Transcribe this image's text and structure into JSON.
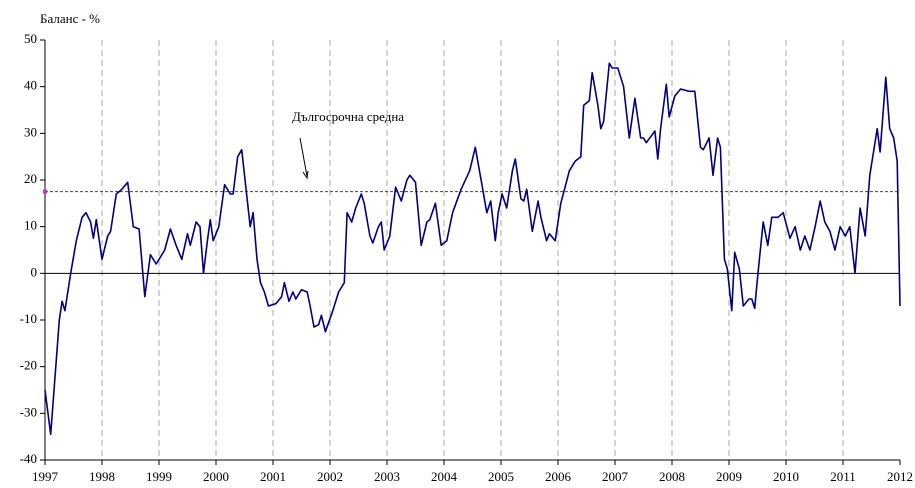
{
  "chart_data": {
    "type": "line",
    "y_label": "Баланс - %",
    "annotation": "Дългосрочна средна",
    "average": 17.5,
    "average_color": "#444444",
    "marker_color": "#cc33cc",
    "xlim": [
      1997,
      2012
    ],
    "xticks": [
      1997,
      1998,
      1999,
      2000,
      2001,
      2002,
      2003,
      2004,
      2005,
      2006,
      2007,
      2008,
      2009,
      2010,
      2011,
      2012
    ],
    "ylim": [
      -40,
      50
    ],
    "yticks": [
      -40,
      -30,
      -20,
      -10,
      0,
      10,
      20,
      30,
      40,
      50
    ],
    "grid": true,
    "x": [
      1997.0,
      1997.1,
      1997.25,
      1997.3,
      1997.35,
      1997.45,
      1997.55,
      1997.65,
      1997.72,
      1997.8,
      1997.85,
      1997.9,
      1998.0,
      1998.1,
      1998.15,
      1998.25,
      1998.35,
      1998.45,
      1998.55,
      1998.65,
      1998.75,
      1998.85,
      1998.95,
      1999.1,
      1999.2,
      1999.3,
      1999.4,
      1999.5,
      1999.55,
      1999.65,
      1999.72,
      1999.78,
      1999.85,
      1999.9,
      1999.95,
      2000.05,
      2000.15,
      2000.25,
      2000.3,
      2000.38,
      2000.45,
      2000.6,
      2000.65,
      2000.72,
      2000.78,
      2000.85,
      2000.92,
      2001.05,
      2001.15,
      2001.2,
      2001.28,
      2001.35,
      2001.4,
      2001.5,
      2001.6,
      2001.65,
      2001.72,
      2001.8,
      2001.85,
      2001.92,
      2002.05,
      2002.15,
      2002.25,
      2002.3,
      2002.38,
      2002.45,
      2002.55,
      2002.6,
      2002.7,
      2002.75,
      2002.85,
      2002.9,
      2002.95,
      2003.05,
      2003.15,
      2003.25,
      2003.35,
      2003.4,
      2003.5,
      2003.6,
      2003.7,
      2003.75,
      2003.85,
      2003.95,
      2004.05,
      2004.15,
      2004.3,
      2004.45,
      2004.55,
      2004.65,
      2004.75,
      2004.82,
      2004.9,
      2004.95,
      2005.02,
      2005.1,
      2005.2,
      2005.25,
      2005.35,
      2005.4,
      2005.45,
      2005.55,
      2005.65,
      2005.7,
      2005.8,
      2005.85,
      2005.95,
      2006.05,
      2006.2,
      2006.3,
      2006.4,
      2006.45,
      2006.55,
      2006.6,
      2006.7,
      2006.75,
      2006.8,
      2006.9,
      2006.95,
      2007.05,
      2007.15,
      2007.25,
      2007.35,
      2007.45,
      2007.5,
      2007.55,
      2007.7,
      2007.75,
      2007.8,
      2007.9,
      2007.95,
      2008.05,
      2008.15,
      2008.3,
      2008.4,
      2008.5,
      2008.55,
      2008.65,
      2008.72,
      2008.8,
      2008.85,
      2008.92,
      2008.97,
      2009.05,
      2009.1,
      2009.18,
      2009.25,
      2009.35,
      2009.4,
      2009.45,
      2009.5,
      2009.6,
      2009.68,
      2009.75,
      2009.86,
      2009.95,
      2010.07,
      2010.16,
      2010.25,
      2010.33,
      2010.42,
      2010.51,
      2010.6,
      2010.68,
      2010.77,
      2010.86,
      2010.95,
      2011.04,
      2011.12,
      2011.21,
      2011.3,
      2011.39,
      2011.47,
      2011.6,
      2011.65,
      2011.75,
      2011.82,
      2011.89,
      2011.95,
      2012.0
    ],
    "series": [
      {
        "name": "Баланс",
        "color": "#000080",
        "values": [
          -25,
          -34.5,
          -10,
          -6,
          -8,
          0,
          7,
          12,
          13,
          11,
          7.5,
          11.5,
          3,
          8,
          9,
          17,
          18,
          19.5,
          10,
          9.5,
          -5,
          4,
          2,
          5,
          9.5,
          6,
          3,
          8.5,
          6,
          11,
          10,
          0,
          7,
          11.5,
          7,
          10,
          19,
          17,
          17,
          25,
          26.5,
          10,
          13,
          3,
          -2,
          -4,
          -7,
          -6.5,
          -5,
          -2,
          -6,
          -4,
          -5.5,
          -3.5,
          -4,
          -7,
          -11.5,
          -11,
          -9,
          -12.5,
          -8,
          -4,
          -2,
          13,
          11,
          14,
          17,
          15,
          8,
          6.5,
          10,
          11,
          5,
          8,
          18.5,
          15.5,
          20,
          21,
          19.5,
          6,
          11,
          11.5,
          15,
          6,
          7,
          13,
          18,
          22,
          27,
          20,
          13,
          15.5,
          7,
          13,
          17,
          14,
          22,
          24.5,
          16,
          15.5,
          18,
          9,
          15.5,
          12,
          7,
          8.5,
          7,
          15,
          22,
          24,
          25,
          36,
          37,
          43,
          36,
          31,
          32.5,
          45,
          44,
          44,
          40,
          29,
          37.5,
          29,
          29,
          28,
          30.5,
          24.5,
          31,
          40.5,
          33.5,
          38,
          39.5,
          39,
          39,
          27,
          26.5,
          29,
          21,
          29,
          27,
          3,
          1,
          -8,
          4.5,
          1,
          -7,
          -5.5,
          -5.5,
          -7.5,
          -1,
          11,
          6,
          12,
          12,
          13,
          7.5,
          10,
          5,
          8,
          5,
          10,
          15.5,
          11,
          9,
          5,
          10,
          8,
          10,
          0,
          14,
          8,
          21,
          31,
          26,
          42,
          31,
          29,
          24,
          -7
        ]
      }
    ]
  }
}
